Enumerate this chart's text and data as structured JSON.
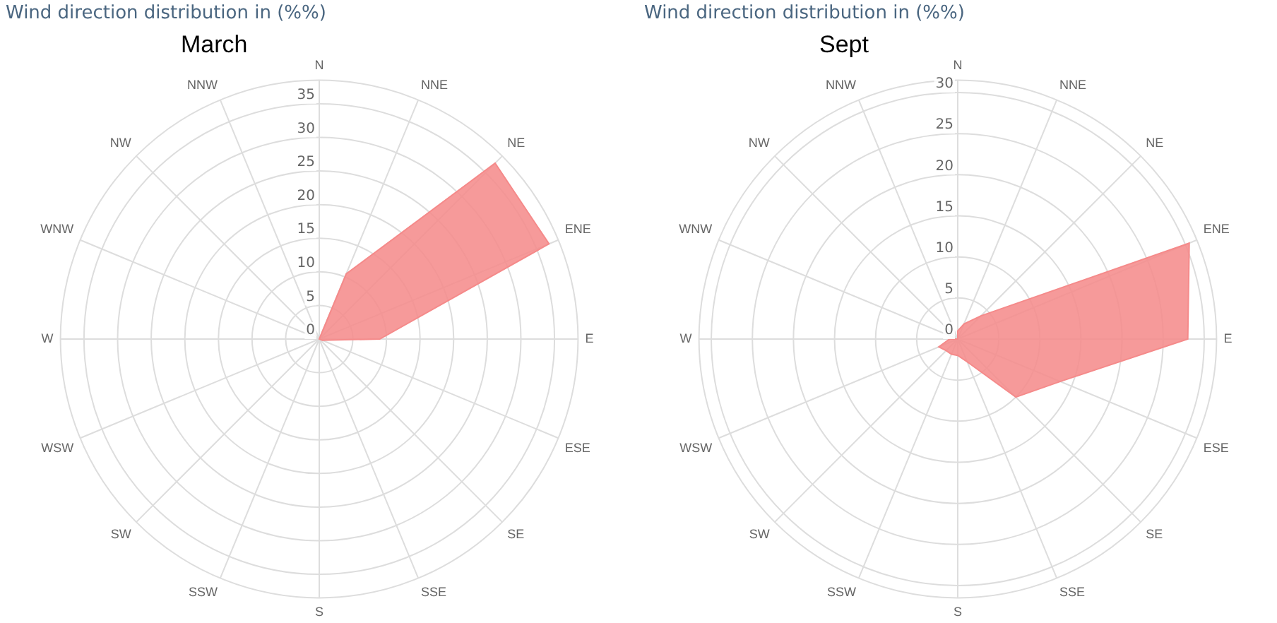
{
  "chart_data": [
    {
      "type": "radar",
      "title": "Wind direction distribution in (%%)",
      "subtitle": "March",
      "categories": [
        "N",
        "NNE",
        "NE",
        "ENE",
        "E",
        "ESE",
        "SE",
        "SSE",
        "S",
        "SSW",
        "SW",
        "WSW",
        "W",
        "WNW",
        "NW",
        "NNW"
      ],
      "ylim": [
        0,
        38.5
      ],
      "yticks": [
        0,
        5,
        10,
        15,
        20,
        25,
        30,
        35
      ],
      "grid": true,
      "series": [
        {
          "color": "#f58a8a",
          "values": [
            0,
            10.5,
            37,
            37,
            9,
            0.5,
            0,
            0,
            0,
            0,
            0,
            0,
            0,
            0,
            0,
            0
          ]
        }
      ]
    },
    {
      "type": "radar",
      "title": "Wind direction distribution in (%%)",
      "subtitle": "Sept",
      "categories": [
        "N",
        "NNE",
        "NE",
        "ENE",
        "E",
        "ESE",
        "SE",
        "SSE",
        "S",
        "SSW",
        "SW",
        "WSW",
        "W",
        "WNW",
        "NW",
        "NNW"
      ],
      "ylim": [
        0,
        31.5
      ],
      "yticks": [
        0,
        5,
        10,
        15,
        20,
        25,
        30
      ],
      "grid": true,
      "series": [
        {
          "color": "#f58a8a",
          "values": [
            1,
            2,
            4,
            30.5,
            28,
            13.5,
            10,
            3,
            2,
            2,
            2,
            2.5,
            1,
            0,
            0,
            0
          ]
        }
      ]
    }
  ]
}
